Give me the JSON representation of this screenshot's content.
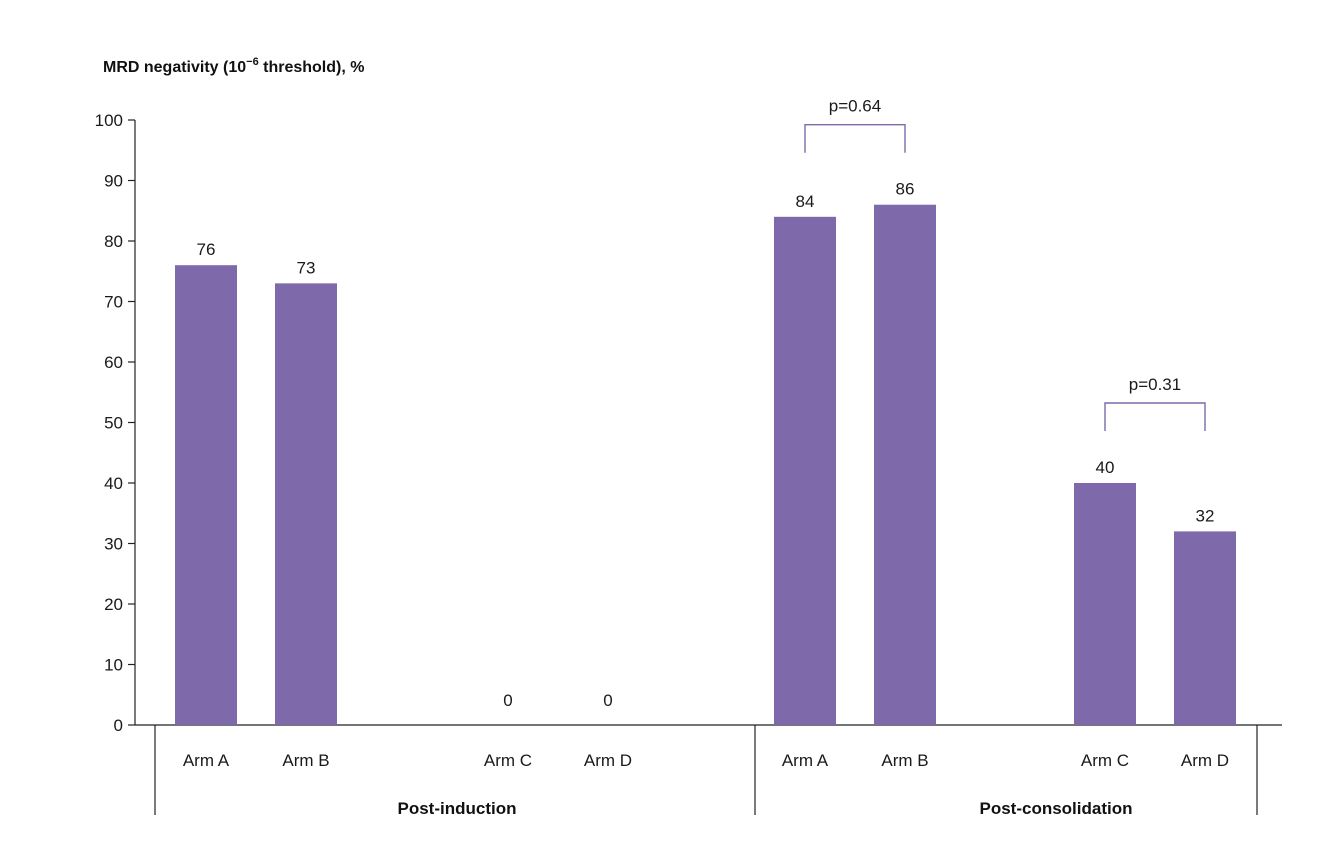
{
  "chart_data": {
    "type": "bar",
    "ylabel_main": "MRD negativity (10",
    "ylabel_sup": "−6",
    "ylabel_tail": " threshold), %",
    "ylim": [
      0,
      100
    ],
    "yticks": [
      "0",
      "10",
      "20",
      "30",
      "40",
      "50",
      "60",
      "70",
      "80",
      "90",
      "100"
    ],
    "bar_color": "#7e69aa",
    "groups": [
      {
        "label": "Post-induction",
        "bars": [
          {
            "category": "Arm A",
            "value": 76,
            "label": "76"
          },
          {
            "category": "Arm B",
            "value": 73,
            "label": "73"
          },
          {
            "category": "Arm C",
            "value": 0,
            "label": "0"
          },
          {
            "category": "Arm D",
            "value": 0,
            "label": "0"
          }
        ]
      },
      {
        "label": "Post-consolidation",
        "bars": [
          {
            "category": "Arm A",
            "value": 84,
            "label": "84"
          },
          {
            "category": "Arm B",
            "value": 86,
            "label": "86"
          },
          {
            "category": "Arm C",
            "value": 40,
            "label": "40"
          },
          {
            "category": "Arm D",
            "value": 32,
            "label": "32"
          }
        ]
      }
    ],
    "comparisons": [
      {
        "group": 1,
        "from": 0,
        "to": 1,
        "text": "p=0.64"
      },
      {
        "group": 1,
        "from": 2,
        "to": 3,
        "text": "p=0.31"
      }
    ]
  }
}
